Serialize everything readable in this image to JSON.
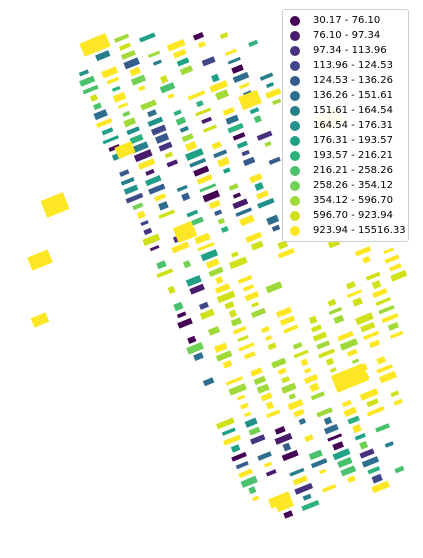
{
  "legend": {
    "items": [
      {
        "label": "30.17 - 76.10",
        "color": "#440154"
      },
      {
        "label": "76.10 - 97.34",
        "color": "#481b6d"
      },
      {
        "label": "97.34 - 113.96",
        "color": "#46327e"
      },
      {
        "label": "113.96 - 124.53",
        "color": "#3f4788"
      },
      {
        "label": "124.53 - 136.26",
        "color": "#365c8d"
      },
      {
        "label": "136.26 - 151.61",
        "color": "#2e6e8e"
      },
      {
        "label": "151.61 - 164.54",
        "color": "#277f8e"
      },
      {
        "label": "164.54 - 176.31",
        "color": "#21918c"
      },
      {
        "label": "176.31 - 193.57",
        "color": "#1fa187"
      },
      {
        "label": "193.57 - 216.21",
        "color": "#2db27d"
      },
      {
        "label": "216.21 - 258.26",
        "color": "#4ac16d"
      },
      {
        "label": "258.26 - 354.12",
        "color": "#73d056"
      },
      {
        "label": "354.12 - 596.70",
        "color": "#a0da39"
      },
      {
        "label": "596.70 - 923.94",
        "color": "#d0e11c"
      },
      {
        "label": "923.94 - 15516.33",
        "color": "#fde725"
      }
    ]
  }
}
